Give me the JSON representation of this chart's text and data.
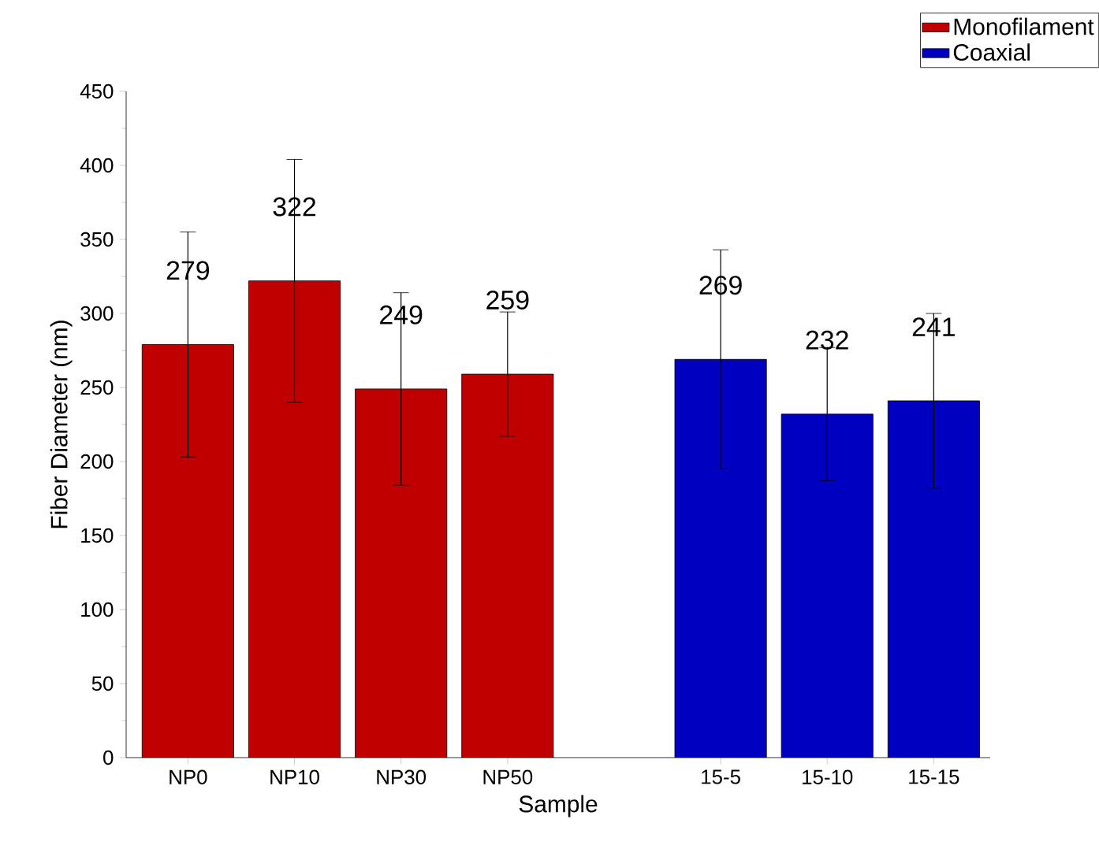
{
  "chart_data": {
    "type": "bar",
    "xlabel": "Sample",
    "ylabel": "Fiber Diameter (nm)",
    "categories": [
      "NP0",
      "NP10",
      "NP30",
      "NP50",
      null,
      "15-5",
      "15-10",
      "15-15"
    ],
    "series": [
      {
        "name": "Monofilament",
        "color": "#c00000",
        "values": [
          279,
          322,
          249,
          259,
          null,
          null,
          null,
          null
        ],
        "errors": [
          76,
          82,
          65,
          42,
          null,
          null,
          null,
          null
        ]
      },
      {
        "name": "Coaxial",
        "color": "#0000c0",
        "values": [
          null,
          null,
          null,
          null,
          null,
          269,
          232,
          241
        ],
        "errors": [
          null,
          null,
          null,
          null,
          null,
          74,
          45,
          59
        ]
      }
    ],
    "ylim": [
      0,
      450
    ],
    "yticks": [
      0,
      50,
      100,
      150,
      200,
      250,
      300,
      350,
      400,
      450
    ],
    "data_labels": true,
    "legend": "top right",
    "grid": false
  }
}
